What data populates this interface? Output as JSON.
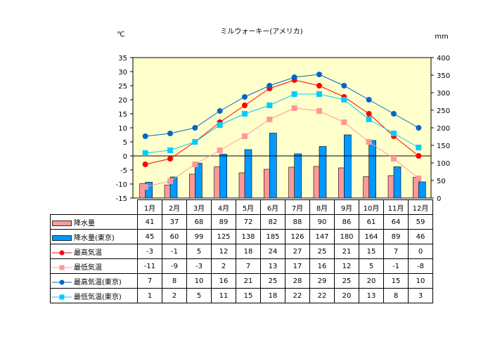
{
  "chart_data": {
    "type": "bar+line",
    "title": "ミルウォーキー(アメリカ)",
    "left_axis_unit": "℃",
    "right_axis_unit": "mm",
    "left_ylim": [
      -15,
      35
    ],
    "left_ticks": [
      35,
      30,
      25,
      20,
      15,
      10,
      5,
      0,
      -5,
      -10,
      -15
    ],
    "right_ylim": [
      0,
      400
    ],
    "right_ticks": [
      400,
      350,
      300,
      250,
      200,
      150,
      100,
      50,
      0
    ],
    "categories": [
      "1月",
      "2月",
      "3月",
      "4月",
      "5月",
      "6月",
      "7月",
      "8月",
      "9月",
      "10月",
      "11月",
      "12月"
    ],
    "series": [
      {
        "name": "降水量",
        "kind": "bar",
        "axis": "right",
        "color": "#ff9999",
        "values": [
          41,
          37,
          68,
          89,
          72,
          82,
          88,
          90,
          86,
          61,
          64,
          59
        ]
      },
      {
        "name": "降水量(東京)",
        "kind": "bar",
        "axis": "right",
        "color": "#0099ff",
        "values": [
          45,
          60,
          99,
          125,
          138,
          185,
          126,
          147,
          180,
          164,
          89,
          46
        ]
      },
      {
        "name": "最高気温",
        "kind": "line",
        "axis": "left",
        "color": "#ff0000",
        "marker": "circle",
        "values": [
          -3,
          -1,
          5,
          12,
          18,
          24,
          27,
          25,
          21,
          15,
          7,
          0
        ]
      },
      {
        "name": "最低気温",
        "kind": "line",
        "axis": "left",
        "color": "#ff9999",
        "marker": "square",
        "values": [
          -11,
          -9,
          -3,
          2,
          7,
          13,
          17,
          16,
          12,
          5,
          -1,
          -8
        ]
      },
      {
        "name": "最高気温(東京)",
        "kind": "line",
        "axis": "left",
        "color": "#0066cc",
        "marker": "circle",
        "values": [
          7,
          8,
          10,
          16,
          21,
          25,
          28,
          29,
          25,
          20,
          15,
          10
        ]
      },
      {
        "name": "最低気温(東京)",
        "kind": "line",
        "axis": "left",
        "color": "#00ccff",
        "marker": "square",
        "values": [
          1,
          2,
          5,
          11,
          15,
          18,
          22,
          22,
          20,
          13,
          8,
          3
        ]
      }
    ],
    "plot_background": "#ffffcc",
    "grid": false,
    "legend": "table-below"
  }
}
